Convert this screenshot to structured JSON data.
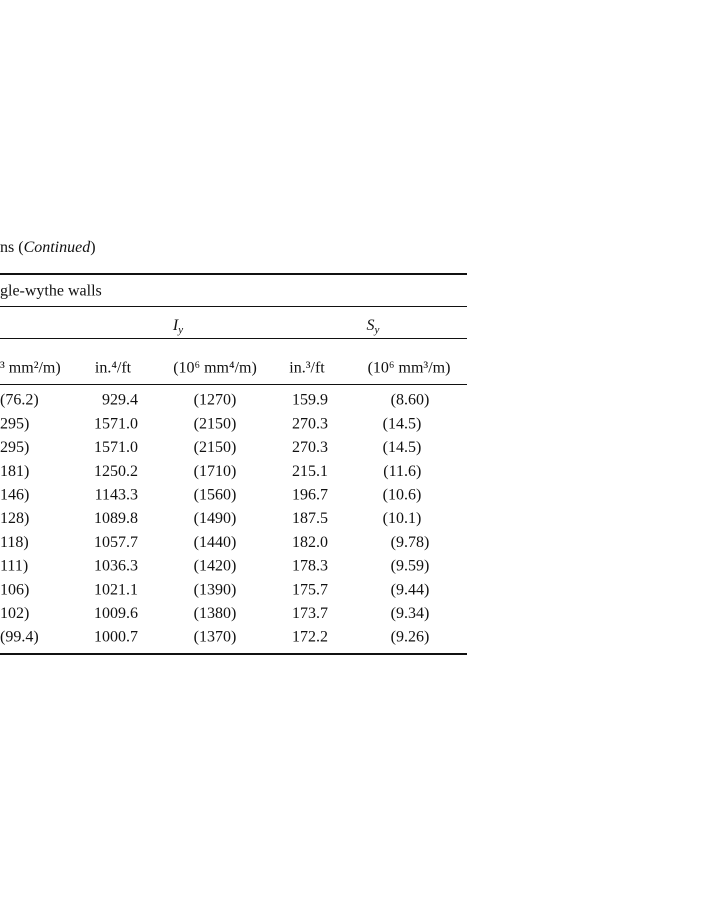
{
  "caption": {
    "text": "ns (",
    "emphasis": "Continued",
    "close": ")"
  },
  "table": {
    "group": "gle-wythe walls",
    "subgroups": [
      {
        "symbol": "I",
        "subscript": "y"
      },
      {
        "symbol": "S",
        "subscript": "y"
      }
    ],
    "columns": [
      "³ mm²/m)",
      "in.⁴/ft",
      "(10⁶ mm⁴/m)",
      "in.³/ft",
      "(10⁶ mm³/m)"
    ],
    "rows": [
      [
        "(76.2)",
        "929.4",
        "(1270)",
        "159.9",
        "(8.60)"
      ],
      [
        "295)",
        "1571.0",
        "(2150)",
        "270.3",
        "(14.5)"
      ],
      [
        "295)",
        "1571.0",
        "(2150)",
        "270.3",
        "(14.5)"
      ],
      [
        "181)",
        "1250.2",
        "(1710)",
        "215.1",
        "(11.6)"
      ],
      [
        "146)",
        "1143.3",
        "(1560)",
        "196.7",
        "(10.6)"
      ],
      [
        "128)",
        "1089.8",
        "(1490)",
        "187.5",
        "(10.1)"
      ],
      [
        "118)",
        "1057.7",
        "(1440)",
        "182.0",
        "(9.78)"
      ],
      [
        "111)",
        "1036.3",
        "(1420)",
        "178.3",
        "(9.59)"
      ],
      [
        "106)",
        "1021.1",
        "(1390)",
        "175.7",
        "(9.44)"
      ],
      [
        "102)",
        "1009.6",
        "(1380)",
        "173.7",
        "(9.34)"
      ],
      [
        "(99.4)",
        "1000.7",
        "(1370)",
        "172.2",
        "(9.26)"
      ]
    ]
  }
}
